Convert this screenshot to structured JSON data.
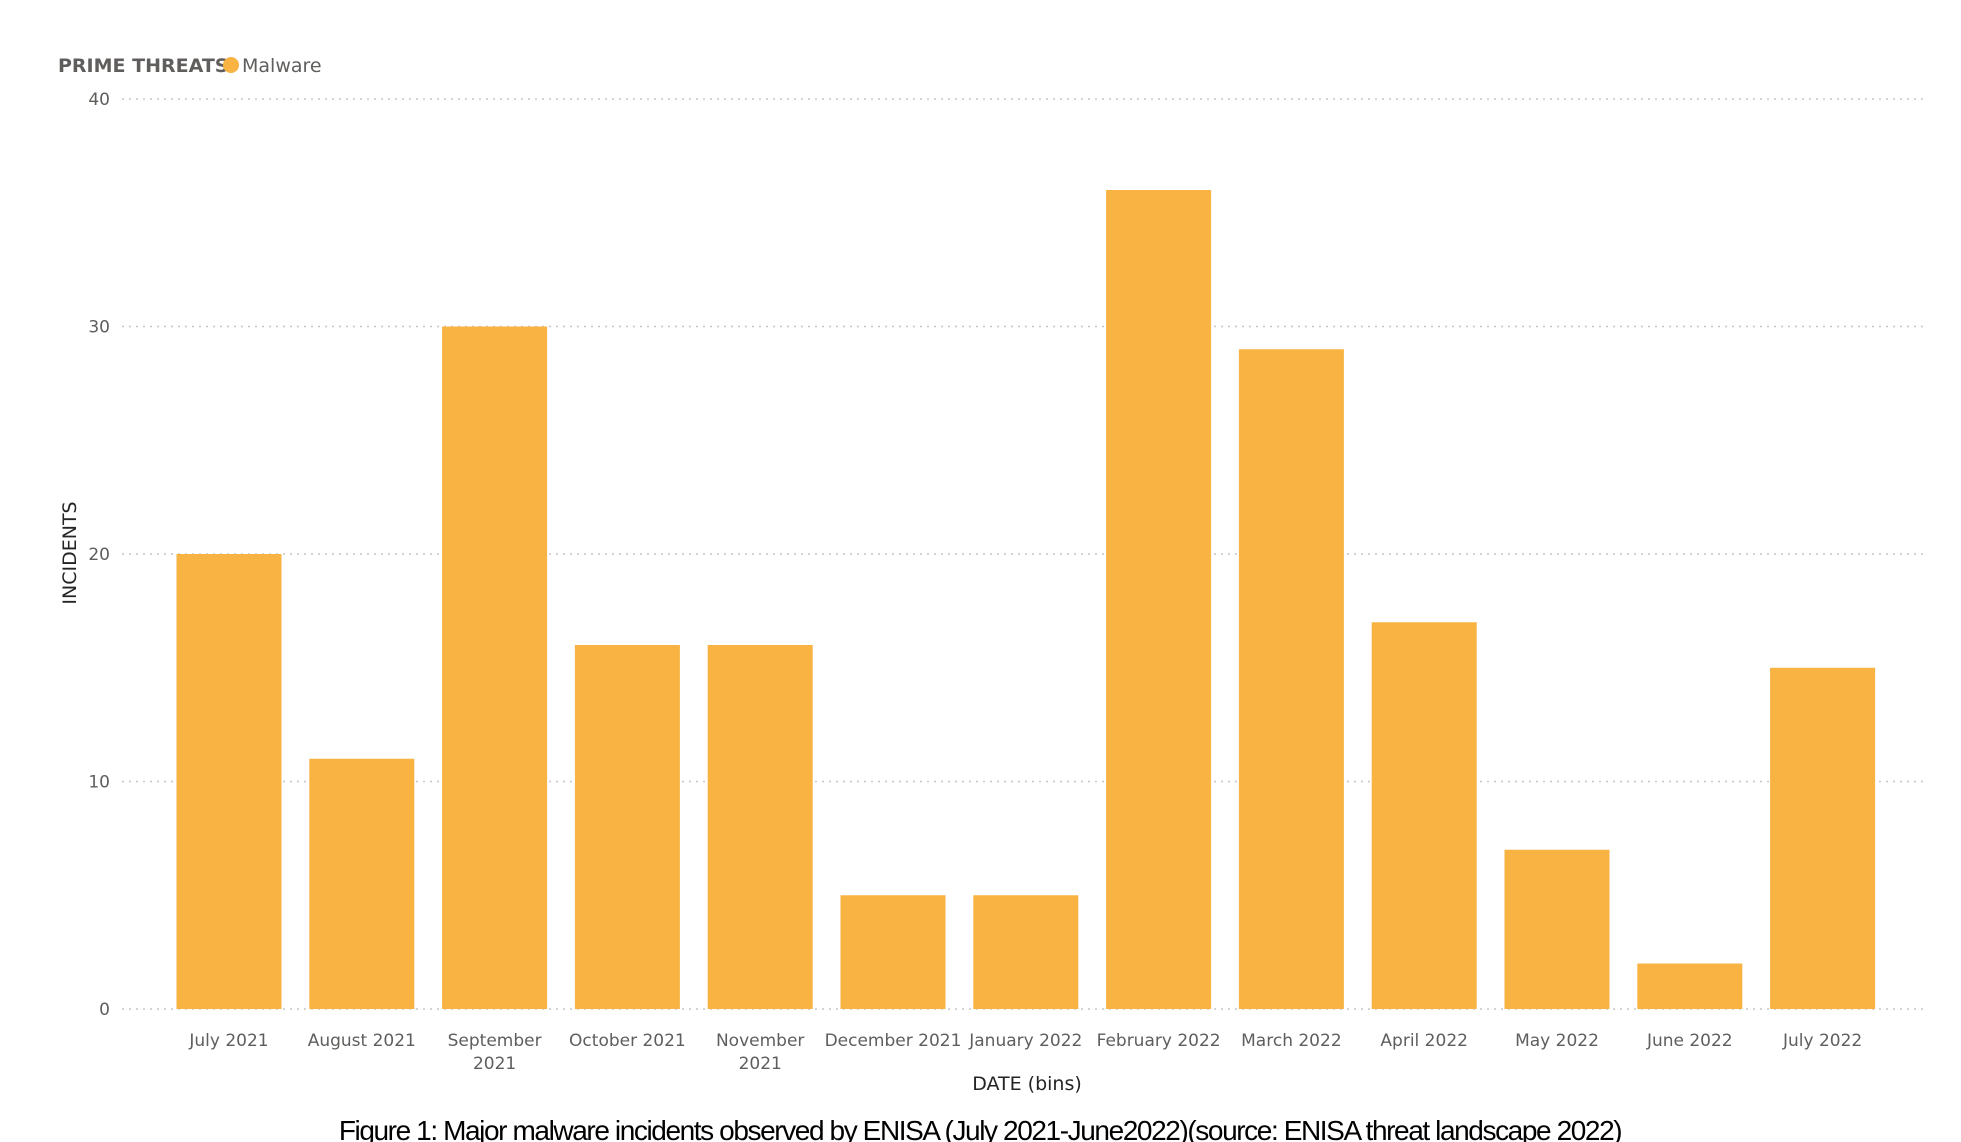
{
  "legend": {
    "title": "PRIME THREATS",
    "series_label": "Malware"
  },
  "caption": "Figure 1: Major  malware incidents observed by ENISA (July 2021-June2022)(source: ENISA threat  landscape 2022)",
  "colors": {
    "bar": "#F8B343",
    "gridline": "#c8c6c4",
    "text": "#605e5c",
    "axis_title": "#252423"
  },
  "chart_data": {
    "type": "bar",
    "xlabel": "DATE (bins)",
    "ylabel": "INCIDENTS",
    "ylim": [
      0,
      40
    ],
    "yticks": [
      0,
      10,
      20,
      30,
      40
    ],
    "grid": true,
    "legend_position": "top-left",
    "categories": [
      "July 2021",
      "August 2021",
      "September 2021",
      "October 2021",
      "November 2021",
      "December 2021",
      "January 2022",
      "February 2022",
      "March 2022",
      "April 2022",
      "May 2022",
      "June 2022",
      "July 2022"
    ],
    "series": [
      {
        "name": "Malware",
        "values": [
          20,
          11,
          30,
          16,
          16,
          5,
          5,
          36,
          29,
          17,
          7,
          2,
          15
        ]
      }
    ]
  }
}
